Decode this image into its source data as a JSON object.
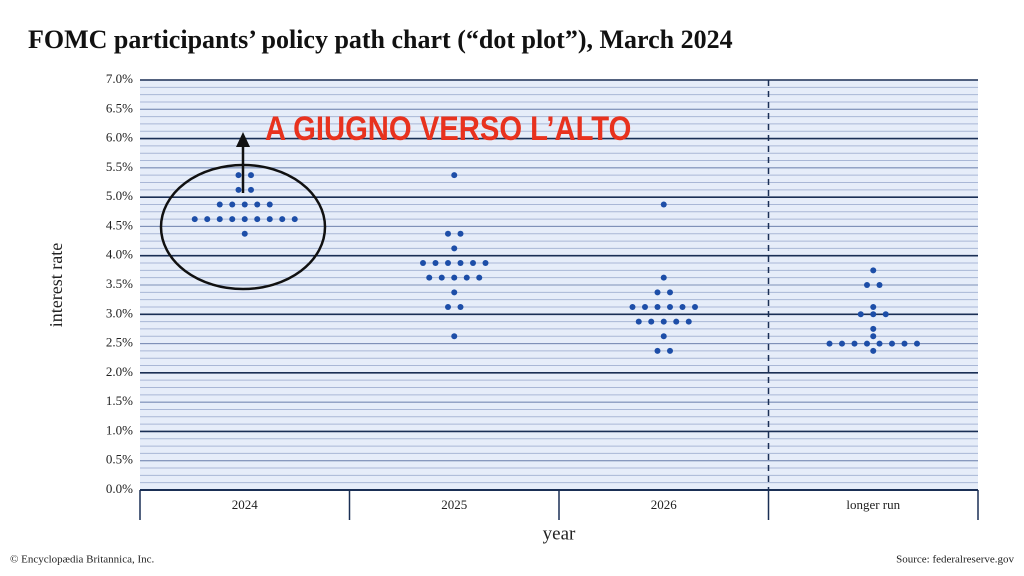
{
  "chart_data": {
    "type": "dot",
    "title": "FOMC participants’ policy path chart (“dot plot”), March 2024",
    "annotation": "A GIUGNO VERSO L’ALTO",
    "x_label": "year",
    "y_label": "interest rate",
    "credit": "© Encyclopædia Britannica, Inc.",
    "source": "Source: federalreserve.gov",
    "categories": [
      "2024",
      "2025",
      "2026",
      "longer run"
    ],
    "values": [
      [
        5.375,
        5.375,
        5.125,
        5.125,
        4.875,
        4.875,
        4.875,
        4.875,
        4.875,
        4.625,
        4.625,
        4.625,
        4.625,
        4.625,
        4.625,
        4.625,
        4.625,
        4.625,
        4.375
      ],
      [
        5.375,
        4.375,
        4.375,
        4.125,
        3.875,
        3.875,
        3.875,
        3.875,
        3.875,
        3.875,
        3.625,
        3.625,
        3.625,
        3.625,
        3.625,
        3.375,
        3.125,
        3.125,
        2.625
      ],
      [
        4.875,
        3.625,
        3.375,
        3.375,
        3.125,
        3.125,
        3.125,
        3.125,
        3.125,
        3.125,
        2.875,
        2.875,
        2.875,
        2.875,
        2.875,
        2.625,
        2.375,
        2.375
      ],
      [
        3.75,
        3.5,
        3.5,
        3.125,
        3.0,
        3.0,
        3.0,
        2.75,
        2.625,
        2.5,
        2.5,
        2.5,
        2.5,
        2.5,
        2.5,
        2.5,
        2.5,
        2.375
      ]
    ],
    "color": "#1d4ea8",
    "ylim": [
      0,
      7
    ],
    "yticks": [
      {
        "value": 0,
        "label": "0.0%"
      },
      {
        "value": 0.5,
        "label": "0.5%"
      },
      {
        "value": 1,
        "label": "1.0%"
      },
      {
        "value": 1.5,
        "label": "1.5%"
      },
      {
        "value": 2,
        "label": "2.0%"
      },
      {
        "value": 2.5,
        "label": "2.5%"
      },
      {
        "value": 3,
        "label": "3.0%"
      },
      {
        "value": 3.5,
        "label": "3.5%"
      },
      {
        "value": 4,
        "label": "4.0%"
      },
      {
        "value": 4.5,
        "label": "4.5%"
      },
      {
        "value": 5,
        "label": "5.0%"
      },
      {
        "value": 5.5,
        "label": "5.5%"
      },
      {
        "value": 6,
        "label": "6.0%"
      },
      {
        "value": 6.5,
        "label": "6.5%"
      },
      {
        "value": 7,
        "label": "7.0%"
      }
    ],
    "minor_grid_step": 0.125,
    "grid": true
  }
}
